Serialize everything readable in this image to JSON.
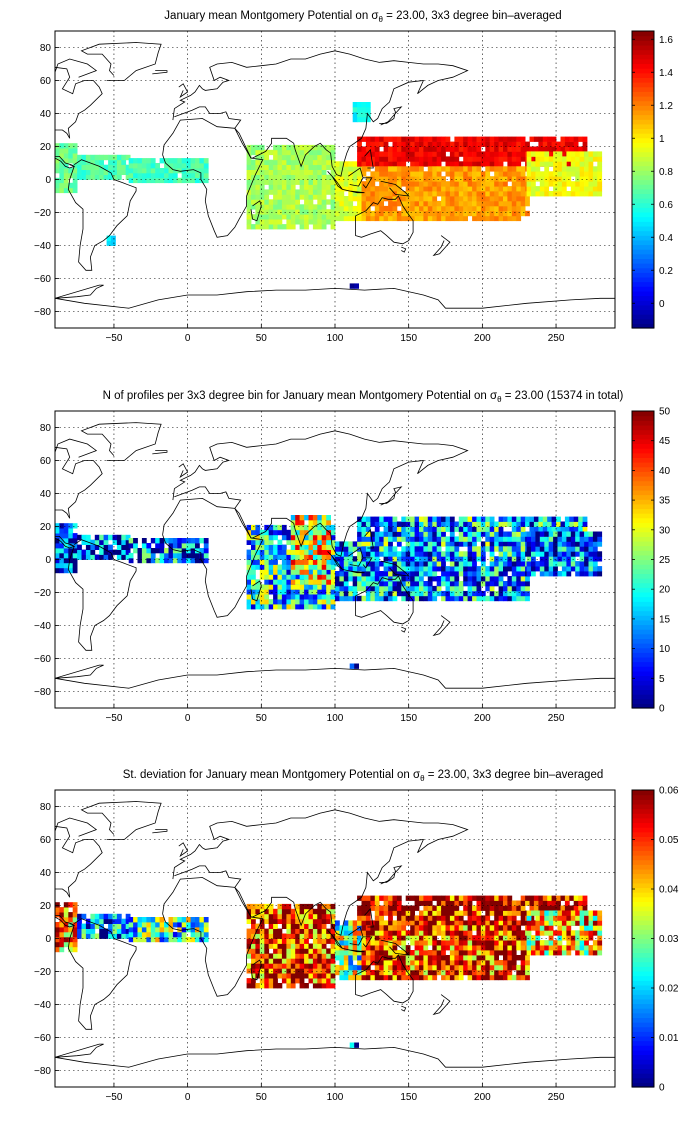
{
  "figure": {
    "panels": [
      {
        "title_prefix": "January mean Montgomery Potential on ",
        "title_suffix": " = 23.00, 3x3 degree bin–averaged",
        "sigma": "σ",
        "sub": "θ",
        "colormap": "jet",
        "colorbar": {
          "min": -0.15,
          "max": 1.65,
          "ticks": [
            0,
            0.2,
            0.4,
            0.6,
            0.8,
            1,
            1.2,
            1.4,
            1.6
          ],
          "tick_labels": [
            "0",
            "0.2",
            "0.4",
            "0.6",
            "0.8",
            "1",
            "1.2",
            "1.4",
            "1.6"
          ]
        }
      },
      {
        "title_prefix": "N of profiles per 3x3 degree bin for January mean Montgomery Potential on ",
        "title_suffix": " = 23.00 (15374 in total)",
        "sigma": "σ",
        "sub": "θ",
        "colormap": "jet",
        "colorbar": {
          "min": 0,
          "max": 50,
          "ticks": [
            0,
            5,
            10,
            15,
            20,
            25,
            30,
            35,
            40,
            45,
            50
          ],
          "tick_labels": [
            "0",
            "5",
            "10",
            "15",
            "20",
            "25",
            "30",
            "35",
            "40",
            "45",
            "50"
          ]
        }
      },
      {
        "title_prefix": "St. deviation for January mean Montgomery Potential on ",
        "title_suffix": " = 23.00, 3x3 degree bin–averaged",
        "sigma": "σ",
        "sub": "θ",
        "colormap": "jet",
        "colorbar": {
          "min": 0,
          "max": 0.06,
          "ticks": [
            0,
            0.01,
            0.02,
            0.03,
            0.04,
            0.05,
            0.06
          ],
          "tick_labels": [
            "0",
            "0.01",
            "0.02",
            "0.03",
            "0.04",
            "0.05",
            "0.06"
          ]
        }
      }
    ],
    "axes": {
      "xlim": [
        -90,
        290
      ],
      "ylim": [
        -90,
        90
      ],
      "xticks": [
        -50,
        0,
        50,
        100,
        150,
        200,
        250
      ],
      "xtick_labels": [
        "−50",
        "0",
        "50",
        "100",
        "150",
        "200",
        "250"
      ],
      "yticks": [
        80,
        60,
        40,
        20,
        0,
        -20,
        -40,
        -60,
        -80
      ],
      "ytick_labels": [
        "80",
        "60",
        "40",
        "20",
        "0",
        "−20",
        "−40",
        "−60",
        "−80"
      ],
      "grid": true,
      "grid_style": "dotted"
    }
  },
  "chart_data": [
    {
      "type": "heatmap",
      "title": "January mean Montgomery Potential on σθ = 23.00, 3x3 degree bin–averaged",
      "bin_size_deg": 3,
      "xlim": [
        -90,
        290
      ],
      "ylim": [
        -90,
        90
      ],
      "color_range": [
        -0.15,
        1.65
      ],
      "regions": [
        {
          "lon": [
            -90,
            -75
          ],
          "lat": [
            -8,
            20
          ],
          "value": 0.72
        },
        {
          "lon": [
            -75,
            -40
          ],
          "lat": [
            0,
            15
          ],
          "value": 0.66
        },
        {
          "lon": [
            -40,
            12
          ],
          "lat": [
            -2,
            12
          ],
          "value": 0.64
        },
        {
          "lon": [
            40,
            100
          ],
          "lat": [
            -30,
            20
          ],
          "value": 0.82
        },
        {
          "lon": [
            100,
            118
          ],
          "lat": [
            -25,
            10
          ],
          "value": 0.92
        },
        {
          "lon": [
            115,
            270
          ],
          "lat": [
            8,
            25
          ],
          "value": 1.45
        },
        {
          "lon": [
            118,
            230
          ],
          "lat": [
            -25,
            8
          ],
          "value": 1.15
        },
        {
          "lon": [
            230,
            280
          ],
          "lat": [
            -10,
            15
          ],
          "value": 0.95
        },
        {
          "lon": [
            112,
            122
          ],
          "lat": [
            35,
            45
          ],
          "value": 0.55
        },
        {
          "lon": [
            -55,
            -50
          ],
          "lat": [
            -40,
            -36
          ],
          "value": 0.45
        },
        {
          "lon": [
            110,
            114
          ],
          "lat": [
            -66,
            -63
          ],
          "value": -0.1
        }
      ]
    },
    {
      "type": "heatmap",
      "title": "N of profiles per 3x3 degree bin for January mean Montgomery Potential on σθ = 23.00 (15374 in total)",
      "bin_size_deg": 3,
      "total_profiles": 15374,
      "xlim": [
        -90,
        290
      ],
      "ylim": [
        -90,
        90
      ],
      "color_range": [
        0,
        50
      ],
      "regions": [
        {
          "lon": [
            -90,
            -75
          ],
          "lat": [
            -8,
            20
          ],
          "value": 6
        },
        {
          "lon": [
            -75,
            -40
          ],
          "lat": [
            0,
            15
          ],
          "value": 8
        },
        {
          "lon": [
            -40,
            12
          ],
          "lat": [
            -2,
            12
          ],
          "value": 12
        },
        {
          "lon": [
            40,
            100
          ],
          "lat": [
            -30,
            20
          ],
          "value": 18
        },
        {
          "lon": [
            70,
            95
          ],
          "lat": [
            -15,
            25
          ],
          "value": 30
        },
        {
          "lon": [
            100,
            118
          ],
          "lat": [
            -25,
            10
          ],
          "value": 12
        },
        {
          "lon": [
            115,
            270
          ],
          "lat": [
            8,
            25
          ],
          "value": 16
        },
        {
          "lon": [
            118,
            230
          ],
          "lat": [
            -25,
            8
          ],
          "value": 14
        },
        {
          "lon": [
            230,
            280
          ],
          "lat": [
            -10,
            15
          ],
          "value": 10
        },
        {
          "lon": [
            110,
            114
          ],
          "lat": [
            -66,
            -63
          ],
          "value": 1
        }
      ]
    },
    {
      "type": "heatmap",
      "title": "St. deviation for January mean Montgomery Potential on σθ = 23.00, 3x3 degree bin–averaged",
      "bin_size_deg": 3,
      "xlim": [
        -90,
        290
      ],
      "ylim": [
        -90,
        90
      ],
      "color_range": [
        0,
        0.06
      ],
      "regions": [
        {
          "lon": [
            -90,
            -75
          ],
          "lat": [
            -8,
            20
          ],
          "value": 0.045
        },
        {
          "lon": [
            -75,
            -40
          ],
          "lat": [
            0,
            15
          ],
          "value": 0.015
        },
        {
          "lon": [
            -40,
            12
          ],
          "lat": [
            -2,
            12
          ],
          "value": 0.025
        },
        {
          "lon": [
            40,
            100
          ],
          "lat": [
            -30,
            20
          ],
          "value": 0.05
        },
        {
          "lon": [
            100,
            118
          ],
          "lat": [
            -25,
            10
          ],
          "value": 0.03
        },
        {
          "lon": [
            115,
            270
          ],
          "lat": [
            8,
            25
          ],
          "value": 0.055
        },
        {
          "lon": [
            118,
            230
          ],
          "lat": [
            -25,
            8
          ],
          "value": 0.05
        },
        {
          "lon": [
            230,
            280
          ],
          "lat": [
            -10,
            15
          ],
          "value": 0.04
        },
        {
          "lon": [
            110,
            114
          ],
          "lat": [
            -66,
            -63
          ],
          "value": 0.005
        }
      ]
    }
  ]
}
